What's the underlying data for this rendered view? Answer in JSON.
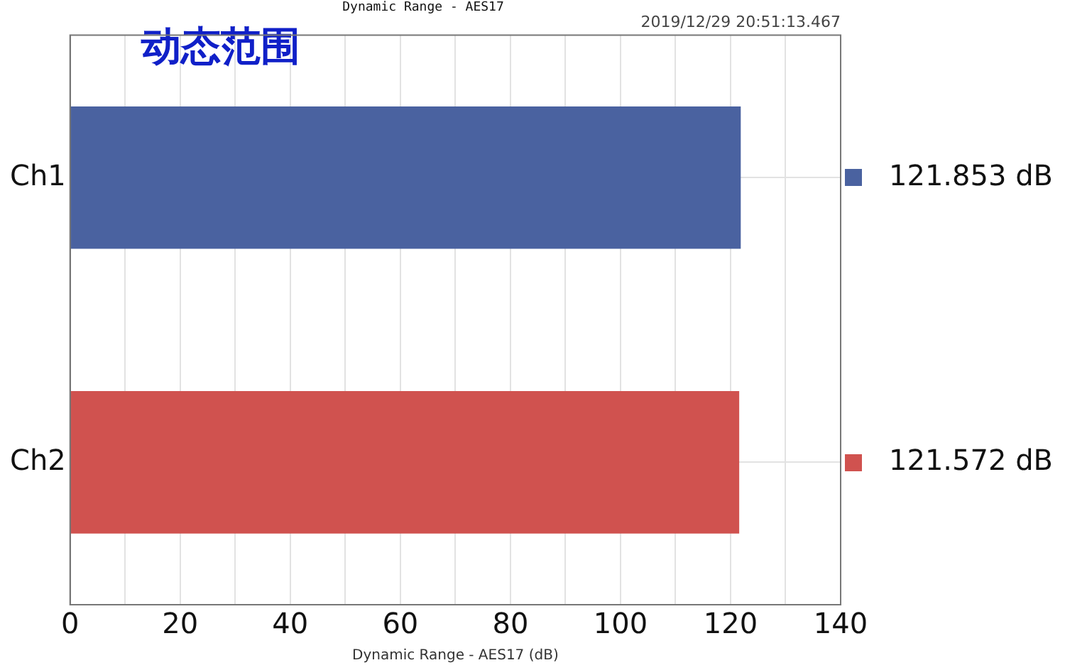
{
  "chart_data": {
    "type": "bar",
    "orientation": "horizontal",
    "title": "Dynamic Range - AES17",
    "xlabel": "Dynamic Range - AES17 (dB)",
    "annotations": [
      "2019/12/29 20:51:13.467",
      "动态范围"
    ],
    "categories": [
      "Ch1",
      "Ch2"
    ],
    "values": [
      121.853,
      121.572
    ],
    "colors": [
      "#4a62a0",
      "#d0524f"
    ],
    "value_labels": [
      "121.853 dB",
      "121.572 dB"
    ],
    "xlim": [
      0,
      140
    ],
    "xticks": [
      0,
      {
        "value": 10,
        "label": null
      },
      20,
      {
        "value": 30,
        "label": null
      },
      40,
      {
        "value": 50,
        "label": null
      },
      60,
      {
        "value": 70,
        "label": null
      },
      80,
      {
        "value": 90,
        "label": null
      },
      100,
      {
        "value": 110,
        "label": null
      },
      120,
      {
        "value": 130,
        "label": null
      },
      140
    ],
    "grid": true,
    "legend": false
  }
}
